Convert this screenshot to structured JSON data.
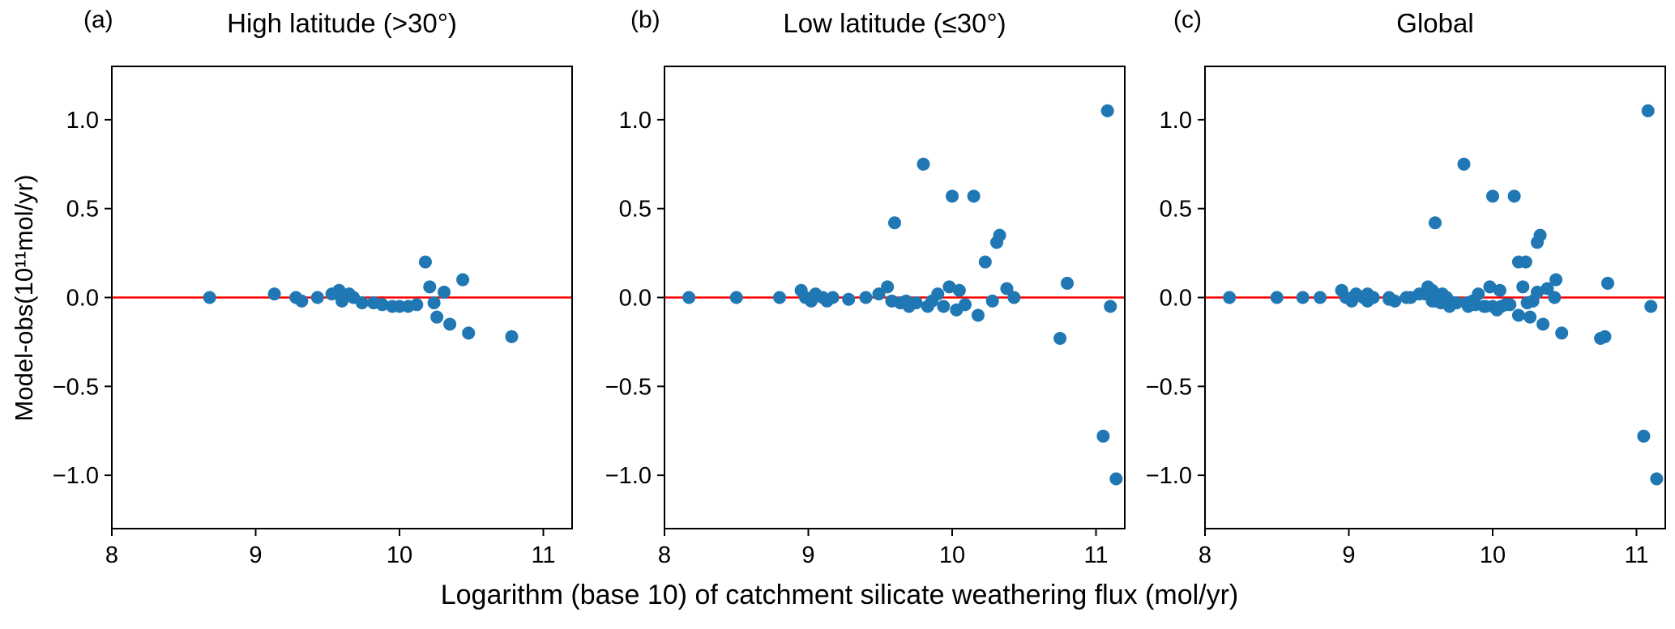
{
  "figure": {
    "xlabel": "Logarithm (base 10) of catchment silicate weathering flux (mol/yr)",
    "ylabel": "Model-obs(10¹¹mol/yr)",
    "colors": {
      "point": "#1f77b4",
      "zero_line": "#ff0000",
      "axis": "#000000",
      "background": "#ffffff"
    }
  },
  "chart_data": [
    {
      "type": "scatter",
      "panel_label": "(a)",
      "title": "High latitude (>30°)",
      "xlim": [
        8,
        11.2
      ],
      "ylim": [
        -1.3,
        1.3
      ],
      "xticks": [
        8,
        9,
        10,
        11
      ],
      "xtick_labels": [
        "8",
        "9",
        "10",
        "11"
      ],
      "yticks": [
        -1.0,
        -0.5,
        0.0,
        0.5,
        1.0
      ],
      "ytick_labels": [
        "−1.0",
        "−0.5",
        "0.0",
        "0.5",
        "1.0"
      ],
      "zero_line_y": 0,
      "x": [
        8.68,
        9.13,
        9.28,
        9.32,
        9.43,
        9.53,
        9.58,
        9.6,
        9.65,
        9.68,
        9.74,
        9.82,
        9.88,
        9.95,
        10.0,
        10.06,
        10.12,
        10.18,
        10.21,
        10.24,
        10.26,
        10.31,
        10.35,
        10.44,
        10.48,
        10.78
      ],
      "y": [
        0.0,
        0.02,
        0.0,
        -0.02,
        0.0,
        0.02,
        0.04,
        -0.02,
        0.02,
        0.0,
        -0.03,
        -0.03,
        -0.04,
        -0.05,
        -0.05,
        -0.05,
        -0.04,
        0.2,
        0.06,
        -0.03,
        -0.11,
        0.03,
        -0.15,
        0.1,
        -0.2,
        -0.22
      ]
    },
    {
      "type": "scatter",
      "panel_label": "(b)",
      "title": "Low latitude (≤30°)",
      "xlim": [
        8,
        11.2
      ],
      "ylim": [
        -1.3,
        1.3
      ],
      "xticks": [
        8,
        9,
        10,
        11
      ],
      "xtick_labels": [
        "8",
        "9",
        "10",
        "11"
      ],
      "yticks": [
        -1.0,
        -0.5,
        0.0,
        0.5,
        1.0
      ],
      "ytick_labels": [
        "−1.0",
        "−0.5",
        "0.0",
        "0.5",
        "1.0"
      ],
      "zero_line_y": 0,
      "x": [
        8.17,
        8.5,
        8.8,
        8.95,
        8.98,
        9.02,
        9.05,
        9.1,
        9.13,
        9.17,
        9.28,
        9.4,
        9.49,
        9.55,
        9.58,
        9.6,
        9.64,
        9.68,
        9.7,
        9.75,
        9.8,
        9.83,
        9.86,
        9.9,
        9.94,
        9.98,
        10.0,
        10.03,
        10.05,
        10.09,
        10.15,
        10.18,
        10.23,
        10.28,
        10.31,
        10.33,
        10.38,
        10.43,
        10.75,
        10.8,
        11.05,
        11.08,
        11.1,
        11.14
      ],
      "y": [
        0.0,
        0.0,
        0.0,
        0.04,
        0.0,
        -0.02,
        0.02,
        0.0,
        -0.02,
        0.0,
        -0.01,
        0.0,
        0.02,
        0.06,
        -0.02,
        0.42,
        -0.03,
        -0.02,
        -0.05,
        -0.03,
        0.75,
        -0.05,
        -0.02,
        0.02,
        -0.05,
        0.06,
        0.57,
        -0.07,
        0.04,
        -0.04,
        0.57,
        -0.1,
        0.2,
        -0.02,
        0.31,
        0.35,
        0.05,
        0.0,
        -0.23,
        0.08,
        -0.78,
        1.05,
        -0.05,
        -1.02
      ]
    },
    {
      "type": "scatter",
      "panel_label": "(c)",
      "title": "Global",
      "xlim": [
        8,
        11.2
      ],
      "ylim": [
        -1.3,
        1.3
      ],
      "xticks": [
        8,
        9,
        10,
        11
      ],
      "xtick_labels": [
        "8",
        "9",
        "10",
        "11"
      ],
      "yticks": [
        -1.0,
        -0.5,
        0.0,
        0.5,
        1.0
      ],
      "ytick_labels": [
        "−1.0",
        "−0.5",
        "0.0",
        "0.5",
        "1.0"
      ],
      "zero_line_y": 0,
      "x": [
        8.68,
        9.13,
        9.28,
        9.32,
        9.43,
        9.53,
        9.58,
        9.6,
        9.65,
        9.68,
        9.74,
        9.82,
        9.88,
        9.95,
        10.0,
        10.06,
        10.12,
        10.18,
        10.21,
        10.24,
        10.26,
        10.31,
        10.35,
        10.44,
        10.48,
        10.78,
        8.17,
        8.5,
        8.8,
        8.95,
        8.98,
        9.02,
        9.05,
        9.1,
        9.13,
        9.17,
        9.28,
        9.4,
        9.49,
        9.55,
        9.58,
        9.6,
        9.64,
        9.68,
        9.7,
        9.75,
        9.8,
        9.83,
        9.86,
        9.9,
        9.94,
        9.98,
        10.0,
        10.03,
        10.05,
        10.09,
        10.15,
        10.18,
        10.23,
        10.28,
        10.31,
        10.33,
        10.38,
        10.43,
        10.75,
        10.8,
        11.05,
        11.08,
        11.1,
        11.14
      ],
      "y": [
        0.0,
        0.02,
        0.0,
        -0.02,
        0.0,
        0.02,
        0.04,
        -0.02,
        0.02,
        0.0,
        -0.03,
        -0.03,
        -0.04,
        -0.05,
        -0.05,
        -0.05,
        -0.04,
        0.2,
        0.06,
        -0.03,
        -0.11,
        0.03,
        -0.15,
        0.1,
        -0.2,
        -0.22,
        0.0,
        0.0,
        0.0,
        0.04,
        0.0,
        -0.02,
        0.02,
        0.0,
        -0.02,
        0.0,
        -0.01,
        0.0,
        0.02,
        0.06,
        -0.02,
        0.42,
        -0.03,
        -0.02,
        -0.05,
        -0.03,
        0.75,
        -0.05,
        -0.02,
        0.02,
        -0.05,
        0.06,
        0.57,
        -0.07,
        0.04,
        -0.04,
        0.57,
        -0.1,
        0.2,
        -0.02,
        0.31,
        0.35,
        0.05,
        0.0,
        -0.23,
        0.08,
        -0.78,
        1.05,
        -0.05,
        -1.02
      ]
    }
  ]
}
